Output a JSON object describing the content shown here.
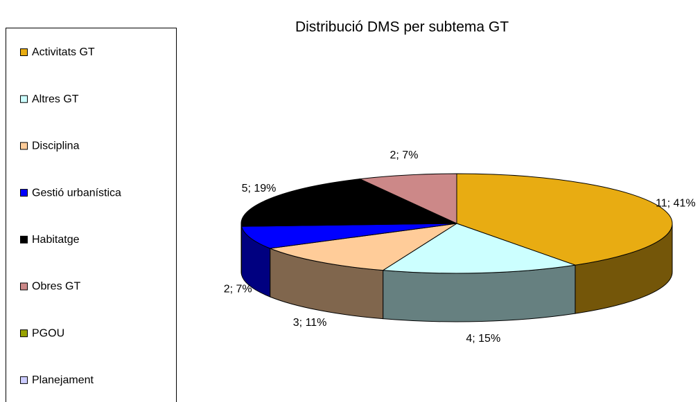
{
  "chart_data": {
    "type": "pie3d",
    "title": "Distribució DMS per subtema GT",
    "categories": [
      "Activitats GT",
      "Altres GT",
      "Disciplina",
      "Gestió urbanística",
      "Habitatge",
      "Obres GT",
      "PGOU",
      "Planejament"
    ],
    "values": [
      11,
      4,
      3,
      2,
      5,
      2,
      0,
      0
    ],
    "value_labels": [
      "11; 41%",
      "4; 15%",
      "3; 11%",
      "2; 7%",
      "5; 19%",
      "2; 7%",
      null,
      null
    ],
    "colors": [
      "#e8ac12",
      "#ccffff",
      "#ffcc99",
      "#0000ff",
      "#000000",
      "#cc8888",
      "#99a300",
      "#ccccff"
    ],
    "legend": "left"
  }
}
